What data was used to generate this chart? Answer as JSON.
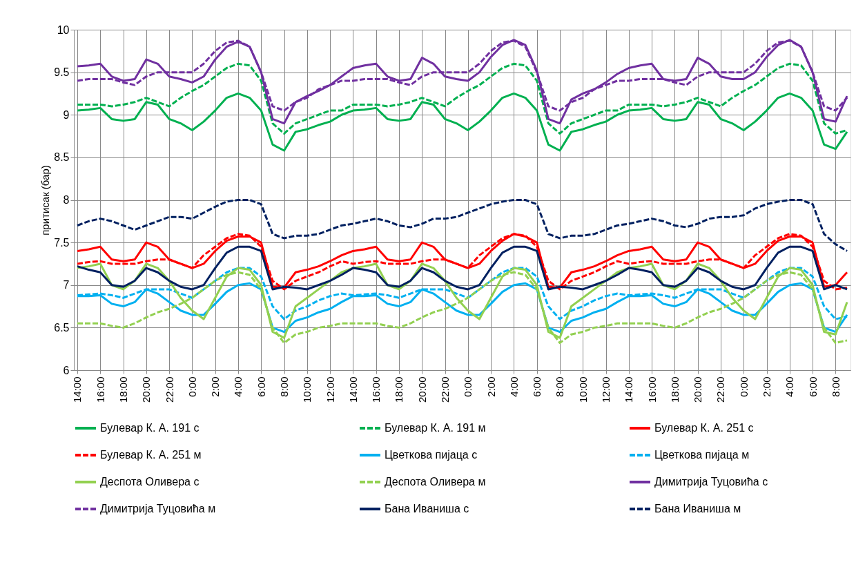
{
  "chart_data": {
    "type": "line",
    "ylabel": "притисак (бар)",
    "ylim": [
      6,
      10
    ],
    "yticks": [
      6,
      6.5,
      7,
      7.5,
      8,
      8.5,
      9,
      9.5,
      10
    ],
    "categories": [
      "14:00",
      null,
      "16:00",
      null,
      "18:00",
      null,
      "20:00",
      null,
      "22:00",
      null,
      "0:00",
      null,
      "2:00",
      null,
      "4:00",
      null,
      "6:00",
      null,
      "8:00",
      null,
      "10:00",
      null,
      "12:00",
      null,
      "14:00",
      null,
      "16:00",
      null,
      "18:00",
      null,
      "20:00",
      null,
      "22:00",
      null,
      "0:00",
      null,
      "2:00",
      null,
      "4:00",
      null,
      "6:00",
      null,
      "8:00",
      null,
      "10:00",
      null,
      "12:00",
      null,
      "14:00",
      null,
      "16:00",
      null,
      "18:00",
      null,
      "20:00",
      null,
      "22:00",
      null,
      "0:00",
      null,
      "2:00",
      null,
      "4:00",
      null,
      "6:00",
      null,
      "8:00",
      null
    ],
    "grid": true,
    "legend": "bottom",
    "marker": "none",
    "series": [
      {
        "name": "Булевар К. А. 191 с",
        "color": "#00b050",
        "line_style": "solid",
        "values": [
          9.05,
          9.06,
          9.08,
          8.95,
          8.93,
          8.95,
          9.15,
          9.12,
          8.95,
          8.9,
          8.82,
          8.92,
          9.05,
          9.2,
          9.25,
          9.2,
          9.05,
          8.65,
          8.58,
          8.8,
          8.83,
          8.88,
          8.92,
          9.0,
          9.05,
          9.06,
          9.08,
          8.95,
          8.93,
          8.95,
          9.15,
          9.12,
          8.95,
          8.9,
          8.82,
          8.92,
          9.05,
          9.2,
          9.25,
          9.2,
          9.05,
          8.65,
          8.58,
          8.8,
          8.83,
          8.88,
          8.92,
          9.0,
          9.05,
          9.06,
          9.08,
          8.95,
          8.93,
          8.95,
          9.15,
          9.12,
          8.95,
          8.9,
          8.82,
          8.92,
          9.05,
          9.2,
          9.25,
          9.2,
          9.05,
          8.65,
          8.6,
          8.8
        ]
      },
      {
        "name": "Булевар К. А. 191 м",
        "color": "#00b050",
        "line_style": "dashed",
        "values": [
          9.12,
          9.12,
          9.12,
          9.1,
          9.12,
          9.15,
          9.2,
          9.15,
          9.1,
          9.2,
          9.28,
          9.35,
          9.45,
          9.55,
          9.6,
          9.58,
          9.4,
          8.9,
          8.78,
          8.9,
          8.95,
          9.0,
          9.05,
          9.05,
          9.12,
          9.12,
          9.12,
          9.1,
          9.12,
          9.15,
          9.2,
          9.15,
          9.1,
          9.2,
          9.28,
          9.35,
          9.45,
          9.55,
          9.6,
          9.58,
          9.4,
          8.9,
          8.78,
          8.9,
          8.95,
          9.0,
          9.05,
          9.05,
          9.12,
          9.12,
          9.12,
          9.1,
          9.12,
          9.15,
          9.2,
          9.15,
          9.1,
          9.2,
          9.28,
          9.35,
          9.45,
          9.55,
          9.6,
          9.58,
          9.4,
          8.9,
          8.78,
          8.82
        ]
      },
      {
        "name": "Булевар К. А. 251 с",
        "color": "#ff0000",
        "line_style": "solid",
        "values": [
          7.4,
          7.42,
          7.45,
          7.3,
          7.28,
          7.3,
          7.5,
          7.45,
          7.3,
          7.25,
          7.2,
          7.25,
          7.4,
          7.52,
          7.57,
          7.57,
          7.5,
          6.98,
          6.97,
          7.15,
          7.18,
          7.22,
          7.28,
          7.35,
          7.4,
          7.42,
          7.45,
          7.3,
          7.28,
          7.3,
          7.5,
          7.45,
          7.3,
          7.25,
          7.2,
          7.25,
          7.4,
          7.52,
          7.6,
          7.57,
          7.5,
          6.98,
          6.97,
          7.15,
          7.18,
          7.22,
          7.28,
          7.35,
          7.4,
          7.42,
          7.45,
          7.3,
          7.28,
          7.3,
          7.5,
          7.45,
          7.3,
          7.25,
          7.2,
          7.25,
          7.4,
          7.52,
          7.57,
          7.57,
          7.5,
          6.98,
          7.0,
          7.15
        ]
      },
      {
        "name": "Булевар К. А. 251 м",
        "color": "#ff0000",
        "line_style": "dashed",
        "values": [
          7.25,
          7.27,
          7.28,
          7.25,
          7.25,
          7.25,
          7.28,
          7.3,
          7.3,
          7.25,
          7.2,
          7.35,
          7.45,
          7.55,
          7.6,
          7.58,
          7.45,
          7.05,
          6.95,
          7.05,
          7.1,
          7.15,
          7.22,
          7.28,
          7.25,
          7.27,
          7.28,
          7.25,
          7.25,
          7.25,
          7.28,
          7.3,
          7.3,
          7.25,
          7.2,
          7.35,
          7.45,
          7.55,
          7.6,
          7.58,
          7.45,
          7.05,
          6.95,
          7.05,
          7.1,
          7.15,
          7.22,
          7.28,
          7.25,
          7.27,
          7.28,
          7.25,
          7.25,
          7.25,
          7.28,
          7.3,
          7.3,
          7.25,
          7.2,
          7.35,
          7.45,
          7.55,
          7.6,
          7.58,
          7.45,
          7.05,
          6.95,
          6.97
        ]
      },
      {
        "name": "Цветкова пијаца с",
        "color": "#00b0f0",
        "line_style": "solid",
        "values": [
          6.87,
          6.87,
          6.88,
          6.78,
          6.75,
          6.8,
          6.95,
          6.9,
          6.8,
          6.7,
          6.65,
          6.65,
          6.78,
          6.92,
          7.0,
          7.02,
          6.95,
          6.5,
          6.45,
          6.58,
          6.62,
          6.68,
          6.72,
          6.8,
          6.87,
          6.87,
          6.88,
          6.78,
          6.75,
          6.8,
          6.95,
          6.9,
          6.8,
          6.7,
          6.65,
          6.65,
          6.78,
          6.92,
          7.0,
          7.02,
          6.95,
          6.5,
          6.45,
          6.58,
          6.62,
          6.68,
          6.72,
          6.8,
          6.87,
          6.87,
          6.88,
          6.78,
          6.75,
          6.8,
          6.95,
          6.9,
          6.8,
          6.7,
          6.65,
          6.65,
          6.78,
          6.92,
          7.0,
          7.02,
          6.95,
          6.5,
          6.45,
          6.65
        ]
      },
      {
        "name": "Цветкова пијаца м",
        "color": "#00b0f0",
        "line_style": "dashed",
        "values": [
          6.88,
          6.89,
          6.9,
          6.88,
          6.85,
          6.9,
          6.95,
          6.95,
          6.95,
          6.9,
          6.85,
          6.95,
          7.05,
          7.15,
          7.2,
          7.2,
          7.1,
          6.75,
          6.6,
          6.7,
          6.75,
          6.82,
          6.87,
          6.9,
          6.88,
          6.89,
          6.9,
          6.88,
          6.85,
          6.9,
          6.95,
          6.95,
          6.95,
          6.9,
          6.85,
          6.95,
          7.05,
          7.15,
          7.2,
          7.2,
          7.1,
          6.75,
          6.6,
          6.7,
          6.75,
          6.82,
          6.87,
          6.9,
          6.88,
          6.89,
          6.9,
          6.88,
          6.85,
          6.9,
          6.95,
          6.95,
          6.95,
          6.9,
          6.85,
          6.95,
          7.05,
          7.15,
          7.2,
          7.2,
          7.1,
          6.75,
          6.6,
          6.63
        ]
      },
      {
        "name": "Деспота Оливера с",
        "color": "#92d050",
        "line_style": "solid",
        "values": [
          7.2,
          7.22,
          7.25,
          7.0,
          6.95,
          7.05,
          7.25,
          7.2,
          7.05,
          6.85,
          6.7,
          6.6,
          6.85,
          7.1,
          7.2,
          7.18,
          7.0,
          6.45,
          6.38,
          6.75,
          6.85,
          6.95,
          7.05,
          7.15,
          7.2,
          7.22,
          7.25,
          7.0,
          6.95,
          7.05,
          7.25,
          7.2,
          7.05,
          6.85,
          6.7,
          6.6,
          6.85,
          7.1,
          7.2,
          7.18,
          7.0,
          6.45,
          6.38,
          6.75,
          6.85,
          6.95,
          7.05,
          7.15,
          7.2,
          7.22,
          7.25,
          7.0,
          6.95,
          7.05,
          7.25,
          7.2,
          7.05,
          6.85,
          6.7,
          6.6,
          6.85,
          7.1,
          7.2,
          7.18,
          7.0,
          6.45,
          6.42,
          6.8
        ]
      },
      {
        "name": "Деспота Оливера м",
        "color": "#92d050",
        "line_style": "dashed",
        "values": [
          6.55,
          6.55,
          6.55,
          6.52,
          6.5,
          6.55,
          6.62,
          6.68,
          6.72,
          6.78,
          6.85,
          6.95,
          7.05,
          7.12,
          7.15,
          7.12,
          6.95,
          6.5,
          6.32,
          6.42,
          6.45,
          6.5,
          6.52,
          6.55,
          6.55,
          6.55,
          6.55,
          6.52,
          6.5,
          6.55,
          6.62,
          6.68,
          6.72,
          6.78,
          6.85,
          6.95,
          7.05,
          7.12,
          7.15,
          7.12,
          6.95,
          6.5,
          6.32,
          6.42,
          6.45,
          6.5,
          6.52,
          6.55,
          6.55,
          6.55,
          6.55,
          6.52,
          6.5,
          6.55,
          6.62,
          6.68,
          6.72,
          6.78,
          6.85,
          6.95,
          7.05,
          7.12,
          7.15,
          7.12,
          6.95,
          6.5,
          6.32,
          6.35
        ]
      },
      {
        "name": "Димитрија Туцовића с",
        "color": "#7030a0",
        "line_style": "solid",
        "values": [
          9.57,
          9.58,
          9.6,
          9.45,
          9.4,
          9.42,
          9.65,
          9.6,
          9.45,
          9.42,
          9.38,
          9.45,
          9.65,
          9.8,
          9.86,
          9.8,
          9.5,
          8.95,
          8.9,
          9.15,
          9.22,
          9.28,
          9.35,
          9.45,
          9.55,
          9.58,
          9.6,
          9.45,
          9.4,
          9.42,
          9.67,
          9.6,
          9.45,
          9.42,
          9.4,
          9.5,
          9.68,
          9.82,
          9.88,
          9.82,
          9.52,
          8.95,
          8.9,
          9.18,
          9.25,
          9.3,
          9.38,
          9.48,
          9.55,
          9.58,
          9.6,
          9.42,
          9.4,
          9.42,
          9.67,
          9.6,
          9.45,
          9.42,
          9.42,
          9.5,
          9.68,
          9.82,
          9.88,
          9.8,
          9.5,
          8.95,
          8.92,
          9.22
        ]
      },
      {
        "name": "Димитрија Туцовића м",
        "color": "#7030a0",
        "line_style": "dashed",
        "values": [
          9.4,
          9.42,
          9.42,
          9.42,
          9.38,
          9.35,
          9.45,
          9.5,
          9.5,
          9.5,
          9.5,
          9.6,
          9.75,
          9.85,
          9.87,
          9.8,
          9.5,
          9.1,
          9.05,
          9.15,
          9.2,
          9.3,
          9.35,
          9.4,
          9.4,
          9.42,
          9.42,
          9.42,
          9.38,
          9.35,
          9.45,
          9.5,
          9.5,
          9.5,
          9.5,
          9.6,
          9.75,
          9.85,
          9.87,
          9.8,
          9.5,
          9.1,
          9.05,
          9.15,
          9.2,
          9.3,
          9.35,
          9.4,
          9.4,
          9.42,
          9.42,
          9.42,
          9.38,
          9.35,
          9.45,
          9.5,
          9.5,
          9.5,
          9.5,
          9.6,
          9.75,
          9.85,
          9.87,
          9.8,
          9.5,
          9.1,
          9.05,
          9.2
        ]
      },
      {
        "name": "Бана Иваниша с",
        "color": "#002060",
        "line_style": "solid",
        "values": [
          7.22,
          7.18,
          7.15,
          7.0,
          6.98,
          7.05,
          7.2,
          7.15,
          7.05,
          6.98,
          6.95,
          7.0,
          7.2,
          7.38,
          7.45,
          7.45,
          7.4,
          6.95,
          6.98,
          6.97,
          6.95,
          7.0,
          7.05,
          7.12,
          7.2,
          7.18,
          7.15,
          7.0,
          6.98,
          7.05,
          7.2,
          7.15,
          7.05,
          6.98,
          6.95,
          7.0,
          7.2,
          7.38,
          7.45,
          7.45,
          7.4,
          6.95,
          6.98,
          6.97,
          6.95,
          7.0,
          7.05,
          7.12,
          7.2,
          7.18,
          7.15,
          7.0,
          6.98,
          7.05,
          7.2,
          7.15,
          7.05,
          6.98,
          6.95,
          7.0,
          7.2,
          7.38,
          7.45,
          7.45,
          7.4,
          6.95,
          7.0,
          6.95
        ]
      },
      {
        "name": "Бана Иваниша м",
        "color": "#002060",
        "line_style": "dashed",
        "values": [
          7.7,
          7.75,
          7.78,
          7.75,
          7.7,
          7.65,
          7.7,
          7.75,
          7.8,
          7.8,
          7.78,
          7.85,
          7.92,
          7.98,
          8.0,
          8.0,
          7.95,
          7.6,
          7.55,
          7.58,
          7.58,
          7.6,
          7.65,
          7.7,
          7.72,
          7.75,
          7.78,
          7.75,
          7.7,
          7.68,
          7.72,
          7.78,
          7.78,
          7.8,
          7.85,
          7.9,
          7.95,
          7.98,
          8.0,
          8.0,
          7.95,
          7.6,
          7.55,
          7.58,
          7.58,
          7.6,
          7.65,
          7.7,
          7.72,
          7.75,
          7.78,
          7.75,
          7.7,
          7.68,
          7.72,
          7.78,
          7.8,
          7.8,
          7.82,
          7.9,
          7.95,
          7.98,
          8.0,
          8.0,
          7.95,
          7.6,
          7.48,
          7.4
        ]
      }
    ]
  }
}
